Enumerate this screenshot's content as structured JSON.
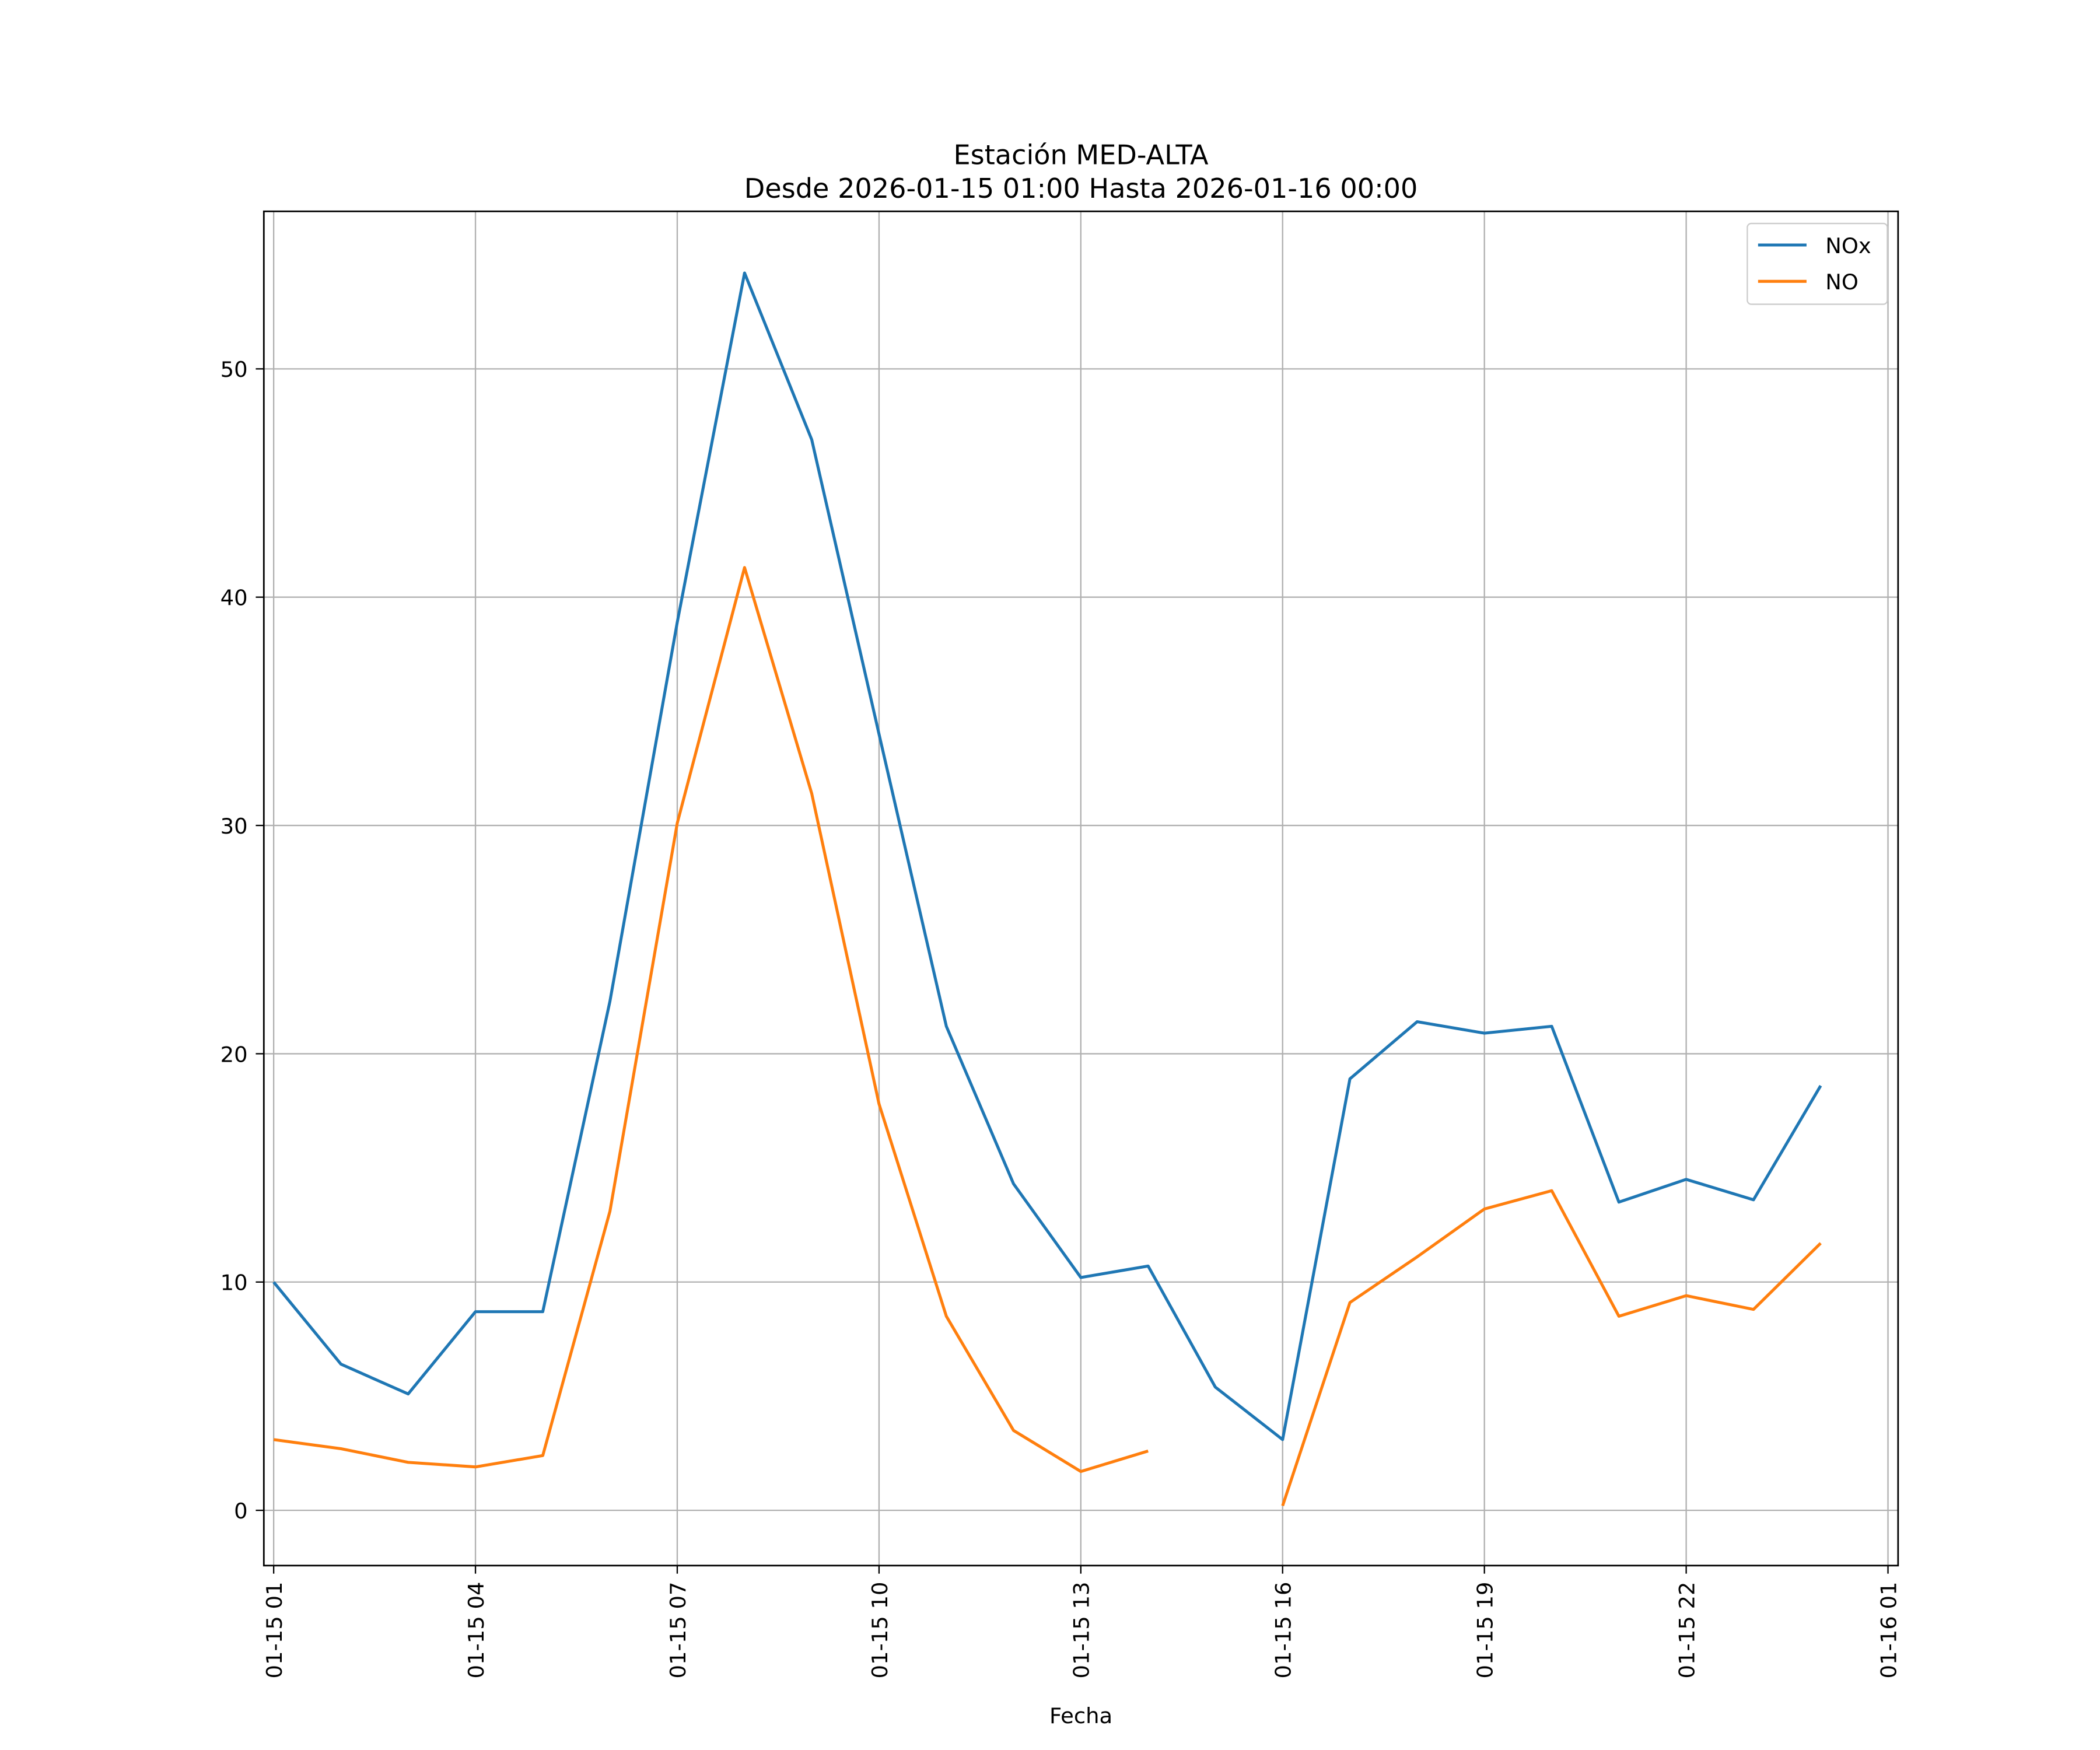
{
  "chart_data": {
    "type": "line",
    "title": "Estación MED-ALTA",
    "subtitle": "Desde 2026-01-15 01:00 Hasta 2026-01-16 00:00",
    "xlabel": "Fecha",
    "ylabel": "",
    "x_unit": "hour offset from 2026-01-15 00:00",
    "x": [
      1,
      2,
      3,
      4,
      5,
      6,
      7,
      8,
      9,
      10,
      11,
      12,
      13,
      14,
      15,
      16,
      17,
      18,
      19,
      20,
      21,
      22,
      23,
      24
    ],
    "xlim": [
      0.854,
      25.15
    ],
    "ylim": [
      -2.42,
      56.9
    ],
    "x_ticks": [
      {
        "value": 1,
        "label": "01-15 01"
      },
      {
        "value": 4,
        "label": "01-15 04"
      },
      {
        "value": 7,
        "label": "01-15 07"
      },
      {
        "value": 10,
        "label": "01-15 10"
      },
      {
        "value": 13,
        "label": "01-15 13"
      },
      {
        "value": 16,
        "label": "01-15 16"
      },
      {
        "value": 19,
        "label": "01-15 19"
      },
      {
        "value": 22,
        "label": "01-15 22"
      },
      {
        "value": 25,
        "label": "01-16 01"
      }
    ],
    "y_ticks": [
      0,
      10,
      20,
      30,
      40,
      50
    ],
    "grid": true,
    "legend": "top-right",
    "series": [
      {
        "name": "NOx",
        "color": "#1f77b4",
        "values": [
          10.0,
          6.4,
          5.1,
          8.7,
          8.7,
          22.3,
          38.9,
          54.2,
          46.9,
          34.0,
          21.2,
          14.3,
          10.2,
          10.7,
          5.4,
          3.1,
          18.9,
          21.4,
          20.9,
          21.2,
          13.5,
          14.5,
          13.6,
          18.6
        ]
      },
      {
        "name": "NO",
        "color": "#ff7f0e",
        "values": [
          3.1,
          2.7,
          2.1,
          1.9,
          2.4,
          13.1,
          30.1,
          41.3,
          31.4,
          17.8,
          8.5,
          3.5,
          1.7,
          2.6,
          null,
          0.2,
          9.1,
          11.1,
          13.2,
          14.0,
          8.5,
          9.4,
          8.8,
          11.7
        ]
      }
    ]
  }
}
